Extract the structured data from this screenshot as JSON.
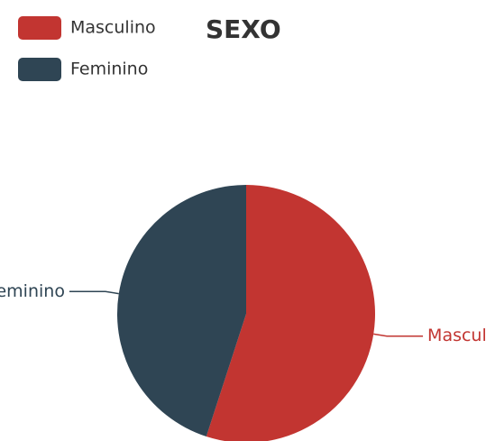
{
  "chart_data": {
    "type": "pie",
    "title": "SEXO",
    "categories": [
      "Masculino",
      "Feminino"
    ],
    "values": [
      55,
      45
    ],
    "colors": [
      "#c23531",
      "#2f4554"
    ]
  }
}
